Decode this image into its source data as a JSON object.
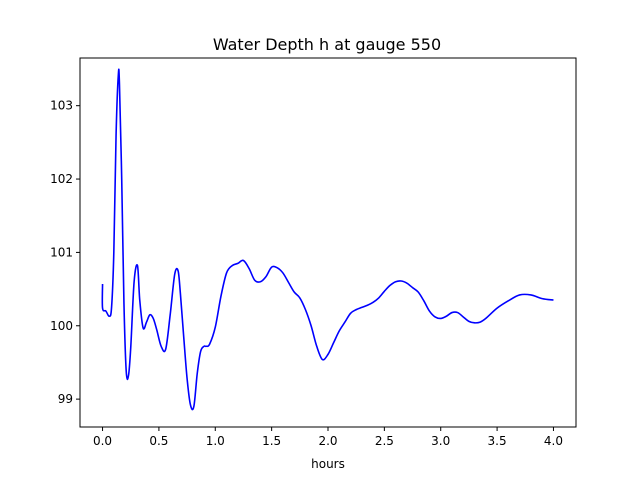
{
  "chart_data": {
    "type": "line",
    "title": "Water Depth h at gauge 550",
    "xlabel": "hours",
    "ylabel": "",
    "xlim": [
      -0.2,
      4.2
    ],
    "ylim": [
      98.62,
      103.65
    ],
    "xticks": [
      0.0,
      0.5,
      1.0,
      1.5,
      2.0,
      2.5,
      3.0,
      3.5,
      4.0
    ],
    "xtick_labels": [
      "0.0",
      "0.5",
      "1.0",
      "1.5",
      "2.0",
      "2.5",
      "3.0",
      "3.5",
      "4.0"
    ],
    "yticks": [
      99,
      100,
      101,
      102,
      103
    ],
    "ytick_labels": [
      "99",
      "100",
      "101",
      "102",
      "103"
    ],
    "grid": false,
    "series": [
      {
        "color": "#0000ff",
        "x": [
          0.0,
          0.0,
          0.03,
          0.06,
          0.08,
          0.1,
          0.12,
          0.14,
          0.15,
          0.17,
          0.19,
          0.21,
          0.23,
          0.25,
          0.28,
          0.31,
          0.33,
          0.36,
          0.39,
          0.42,
          0.45,
          0.48,
          0.52,
          0.56,
          0.6,
          0.64,
          0.67,
          0.69,
          0.72,
          0.75,
          0.78,
          0.81,
          0.84,
          0.87,
          0.9,
          0.92,
          0.95,
          1.0,
          1.05,
          1.1,
          1.15,
          1.2,
          1.25,
          1.3,
          1.35,
          1.4,
          1.45,
          1.5,
          1.55,
          1.6,
          1.65,
          1.7,
          1.75,
          1.8,
          1.85,
          1.9,
          1.95,
          2.0,
          2.05,
          2.1,
          2.15,
          2.2,
          2.25,
          2.3,
          2.35,
          2.4,
          2.45,
          2.5,
          2.55,
          2.6,
          2.65,
          2.7,
          2.75,
          2.8,
          2.85,
          2.9,
          2.95,
          3.0,
          3.05,
          3.1,
          3.15,
          3.2,
          3.25,
          3.3,
          3.35,
          3.4,
          3.5,
          3.6,
          3.7,
          3.8,
          3.9,
          4.0
        ],
        "y": [
          100.57,
          100.24,
          100.2,
          100.13,
          100.25,
          101.0,
          102.6,
          103.42,
          103.3,
          102.0,
          100.3,
          99.38,
          99.32,
          99.7,
          100.6,
          100.82,
          100.35,
          99.97,
          100.05,
          100.15,
          100.1,
          99.95,
          99.72,
          99.68,
          100.15,
          100.7,
          100.75,
          100.45,
          99.85,
          99.28,
          98.92,
          98.9,
          99.35,
          99.65,
          99.72,
          99.72,
          99.75,
          99.98,
          100.4,
          100.72,
          100.82,
          100.85,
          100.89,
          100.78,
          100.62,
          100.6,
          100.67,
          100.8,
          100.79,
          100.72,
          100.59,
          100.46,
          100.38,
          100.22,
          100.0,
          99.72,
          99.54,
          99.61,
          99.77,
          99.93,
          100.05,
          100.17,
          100.22,
          100.25,
          100.28,
          100.32,
          100.38,
          100.47,
          100.55,
          100.6,
          100.61,
          100.58,
          100.52,
          100.46,
          100.34,
          100.2,
          100.12,
          100.1,
          100.13,
          100.18,
          100.18,
          100.12,
          100.06,
          100.04,
          100.05,
          100.1,
          100.24,
          100.34,
          100.42,
          100.42,
          100.37,
          100.35
        ]
      }
    ]
  }
}
